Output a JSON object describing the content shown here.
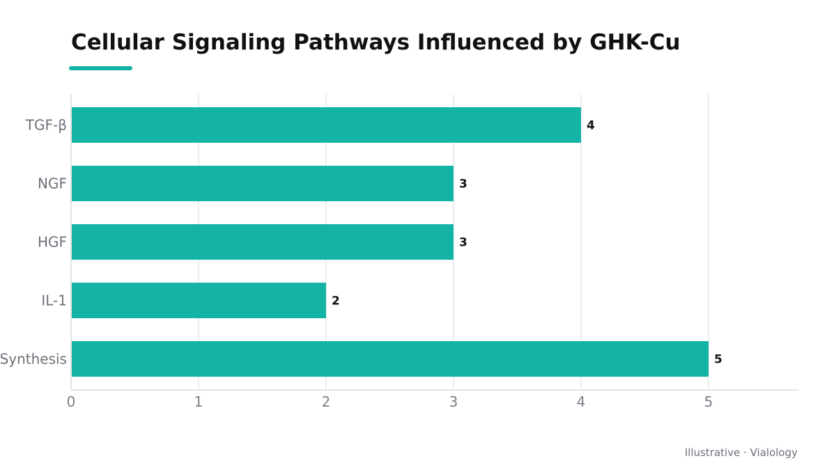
{
  "chart_data": {
    "type": "bar",
    "orientation": "horizontal",
    "title": "Cellular Signaling Pathways Influenced by GHK-Cu",
    "categories": [
      "TGF-β",
      "NGF",
      "HGF",
      "IL-1",
      "Synthesis"
    ],
    "values": [
      4,
      3,
      3,
      2,
      5
    ],
    "xlim": [
      0,
      5.7
    ],
    "x_ticks": [
      0,
      1,
      2,
      3,
      4,
      5
    ],
    "xlabel": "",
    "ylabel": "",
    "grid": "vertical",
    "legend": "none",
    "data_labels": true
  },
  "colors": {
    "bar": "#13b3a5",
    "accent": "#13b3a5",
    "grid": "#e6e7ea",
    "axis": "#d9dbde"
  },
  "footer": "Illustrative · Vialology"
}
